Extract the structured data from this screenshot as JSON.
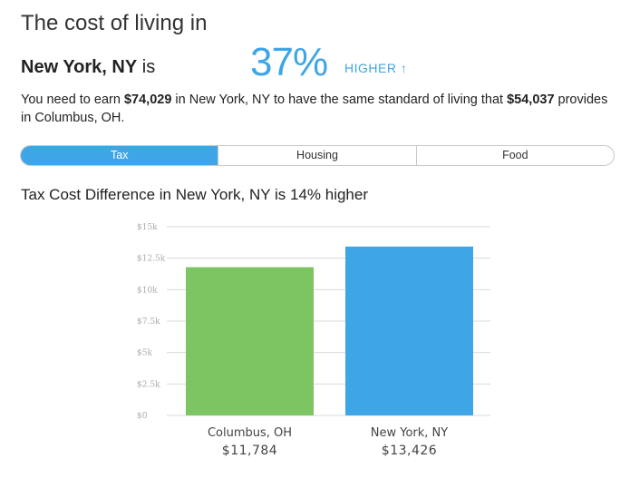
{
  "header": {
    "title": "The cost of living in",
    "city": "New York, NY",
    "is_word": "is",
    "percent": "37%",
    "direction": "HIGHER",
    "arrow_icon": "up-arrow-icon"
  },
  "description": {
    "part1": "You need to earn ",
    "earn_amount": "$74,029",
    "part2": " in New York, NY to have the same standard of living that ",
    "base_amount": "$54,037",
    "part3": " provides in Columbus, OH."
  },
  "tabs": [
    {
      "label": "Tax",
      "active": true
    },
    {
      "label": "Housing",
      "active": false
    },
    {
      "label": "Food",
      "active": false
    }
  ],
  "chart_title": "Tax Cost Difference in New York, NY is 14% higher",
  "colors": {
    "accent": "#3ea6e6",
    "columbus_bar": "#7dc462",
    "newyork_bar": "#3ea6e6"
  },
  "chart_data": {
    "type": "bar",
    "categories": [
      "Columbus, OH",
      "New York, NY"
    ],
    "values": [
      11784,
      13426
    ],
    "value_labels": [
      "$11,784",
      "$13,426"
    ],
    "tick_values": [
      0,
      2500,
      5000,
      7500,
      10000,
      12500,
      15000
    ],
    "tick_labels": [
      "$0",
      "$2.5k",
      "$5k",
      "$7.5k",
      "$10k",
      "$12.5k",
      "$15k"
    ],
    "ylim": [
      0,
      15000
    ],
    "grid": true
  }
}
